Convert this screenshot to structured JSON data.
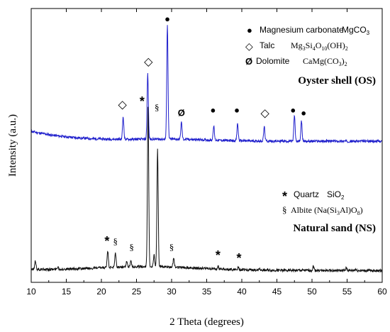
{
  "chart_data": {
    "type": "line",
    "xlabel": "2 Theta (degrees)",
    "ylabel": "Intensity (a.u.)",
    "xlim": [
      10,
      60
    ],
    "x_ticks": [
      "10",
      "15",
      "20",
      "25",
      "30",
      "35",
      "40",
      "45",
      "50",
      "55",
      "60"
    ],
    "grid": false,
    "series": [
      {
        "name": "Oyster shell (OS)",
        "color": "#1f1fcc",
        "baseline_intensity": 0.47,
        "peaks": [
          {
            "x": 23.1,
            "intensity": 0.55
          },
          {
            "x": 26.6,
            "intensity": 0.7
          },
          {
            "x": 29.4,
            "intensity": 0.87
          },
          {
            "x": 31.4,
            "intensity": 0.53
          },
          {
            "x": 36.0,
            "intensity": 0.52
          },
          {
            "x": 39.4,
            "intensity": 0.53
          },
          {
            "x": 43.2,
            "intensity": 0.52
          },
          {
            "x": 47.5,
            "intensity": 0.56
          },
          {
            "x": 48.5,
            "intensity": 0.54
          }
        ]
      },
      {
        "name": "Natural sand (NS)",
        "color": "#111111",
        "baseline_intensity": 0.02,
        "peaks": [
          {
            "x": 10.6,
            "intensity": 0.05
          },
          {
            "x": 13.8,
            "intensity": 0.03
          },
          {
            "x": 20.9,
            "intensity": 0.08
          },
          {
            "x": 22.0,
            "intensity": 0.07
          },
          {
            "x": 23.6,
            "intensity": 0.04
          },
          {
            "x": 24.2,
            "intensity": 0.04
          },
          {
            "x": 26.65,
            "intensity": 0.58
          },
          {
            "x": 27.5,
            "intensity": 0.06
          },
          {
            "x": 28.0,
            "intensity": 0.43
          },
          {
            "x": 30.3,
            "intensity": 0.05
          },
          {
            "x": 36.6,
            "intensity": 0.03
          },
          {
            "x": 39.5,
            "intensity": 0.03
          },
          {
            "x": 42.5,
            "intensity": 0.025
          },
          {
            "x": 50.2,
            "intensity": 0.035
          },
          {
            "x": 54.9,
            "intensity": 0.03
          },
          {
            "x": 56.2,
            "intensity": 0.025
          }
        ]
      }
    ],
    "markers": [
      {
        "symbol": "◇",
        "x": 23.0,
        "intensity": 0.6
      },
      {
        "symbol": "◇",
        "x": 26.7,
        "intensity": 0.75
      },
      {
        "symbol": "●",
        "x": 29.4,
        "intensity": 0.9
      },
      {
        "symbol": "Ø",
        "x": 31.4,
        "intensity": 0.57
      },
      {
        "symbol": "●",
        "x": 35.9,
        "intensity": 0.58
      },
      {
        "symbol": "●",
        "x": 39.3,
        "intensity": 0.58
      },
      {
        "symbol": "◇",
        "x": 43.3,
        "intensity": 0.57
      },
      {
        "symbol": "●",
        "x": 47.3,
        "intensity": 0.58
      },
      {
        "symbol": "●",
        "x": 48.8,
        "intensity": 0.57
      },
      {
        "symbol": "*",
        "x": 20.8,
        "intensity": 0.12
      },
      {
        "symbol": "§",
        "x": 22.0,
        "intensity": 0.12
      },
      {
        "symbol": "§",
        "x": 24.3,
        "intensity": 0.1
      },
      {
        "symbol": "*",
        "x": 25.8,
        "intensity": 0.61
      },
      {
        "symbol": "§",
        "x": 27.9,
        "intensity": 0.59
      },
      {
        "symbol": "§",
        "x": 30.0,
        "intensity": 0.1
      },
      {
        "symbol": "*",
        "x": 36.6,
        "intensity": 0.07
      },
      {
        "symbol": "*",
        "x": 39.6,
        "intensity": 0.06
      }
    ],
    "legends": [
      {
        "placement": "top-right",
        "items": [
          {
            "symbol": "●",
            "label": "Magnesium carbonate",
            "formula": "MgCO3"
          },
          {
            "symbol": "◇",
            "label": "Talc",
            "formula": "Mg3Si4O10(OH)2"
          },
          {
            "symbol": "Ø",
            "label": "Dolomite",
            "formula": "CaMg(CO3)2"
          }
        ],
        "caption": "Oyster shell (OS)"
      },
      {
        "placement": "middle-right",
        "items": [
          {
            "symbol": "*",
            "label": "Quartz",
            "formula": "SiO2"
          },
          {
            "symbol": "§",
            "label": "Albite (Na(Si3Al)O8)",
            "formula": ""
          }
        ],
        "caption": "Natural sand (NS)"
      }
    ]
  }
}
